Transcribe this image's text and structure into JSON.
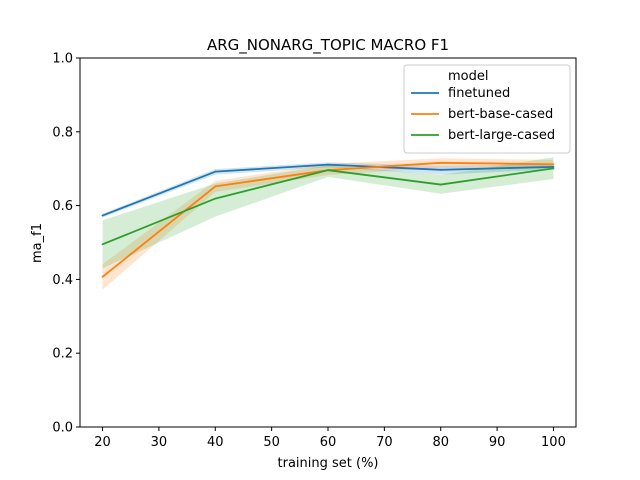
{
  "chart_data": {
    "type": "line",
    "title": "ARG_NONARG_TOPIC MACRO F1",
    "xlabel": "training set (%)",
    "ylabel": "ma_f1",
    "x": [
      20,
      40,
      60,
      80,
      100
    ],
    "xlim": [
      16,
      104
    ],
    "ylim": [
      0,
      1
    ],
    "xticks": [
      "20",
      "30",
      "40",
      "50",
      "60",
      "70",
      "80",
      "90",
      "100"
    ],
    "yticks": [
      "0.0",
      "0.2",
      "0.4",
      "0.6",
      "0.8",
      "1.0"
    ],
    "grid": false,
    "legend": {
      "title": "model",
      "position": "top-right"
    },
    "series": [
      {
        "name": "finetuned",
        "color": "#1f77b4",
        "values": [
          0.573,
          0.692,
          0.711,
          0.697,
          0.705
        ],
        "ci_low": [
          0.568,
          0.684,
          0.704,
          0.684,
          0.698
        ],
        "ci_high": [
          0.578,
          0.699,
          0.717,
          0.708,
          0.712
        ]
      },
      {
        "name": "bert-base-cased",
        "color": "#ff7f0e",
        "values": [
          0.407,
          0.652,
          0.696,
          0.716,
          0.712
        ],
        "ci_low": [
          0.372,
          0.637,
          0.683,
          0.703,
          0.7
        ],
        "ci_high": [
          0.441,
          0.667,
          0.713,
          0.728,
          0.724
        ]
      },
      {
        "name": "bert-large-cased",
        "color": "#2ca02c",
        "values": [
          0.495,
          0.619,
          0.696,
          0.657,
          0.701
        ],
        "ci_low": [
          0.43,
          0.57,
          0.678,
          0.632,
          0.672
        ],
        "ci_high": [
          0.56,
          0.66,
          0.709,
          0.683,
          0.731
        ]
      }
    ]
  }
}
